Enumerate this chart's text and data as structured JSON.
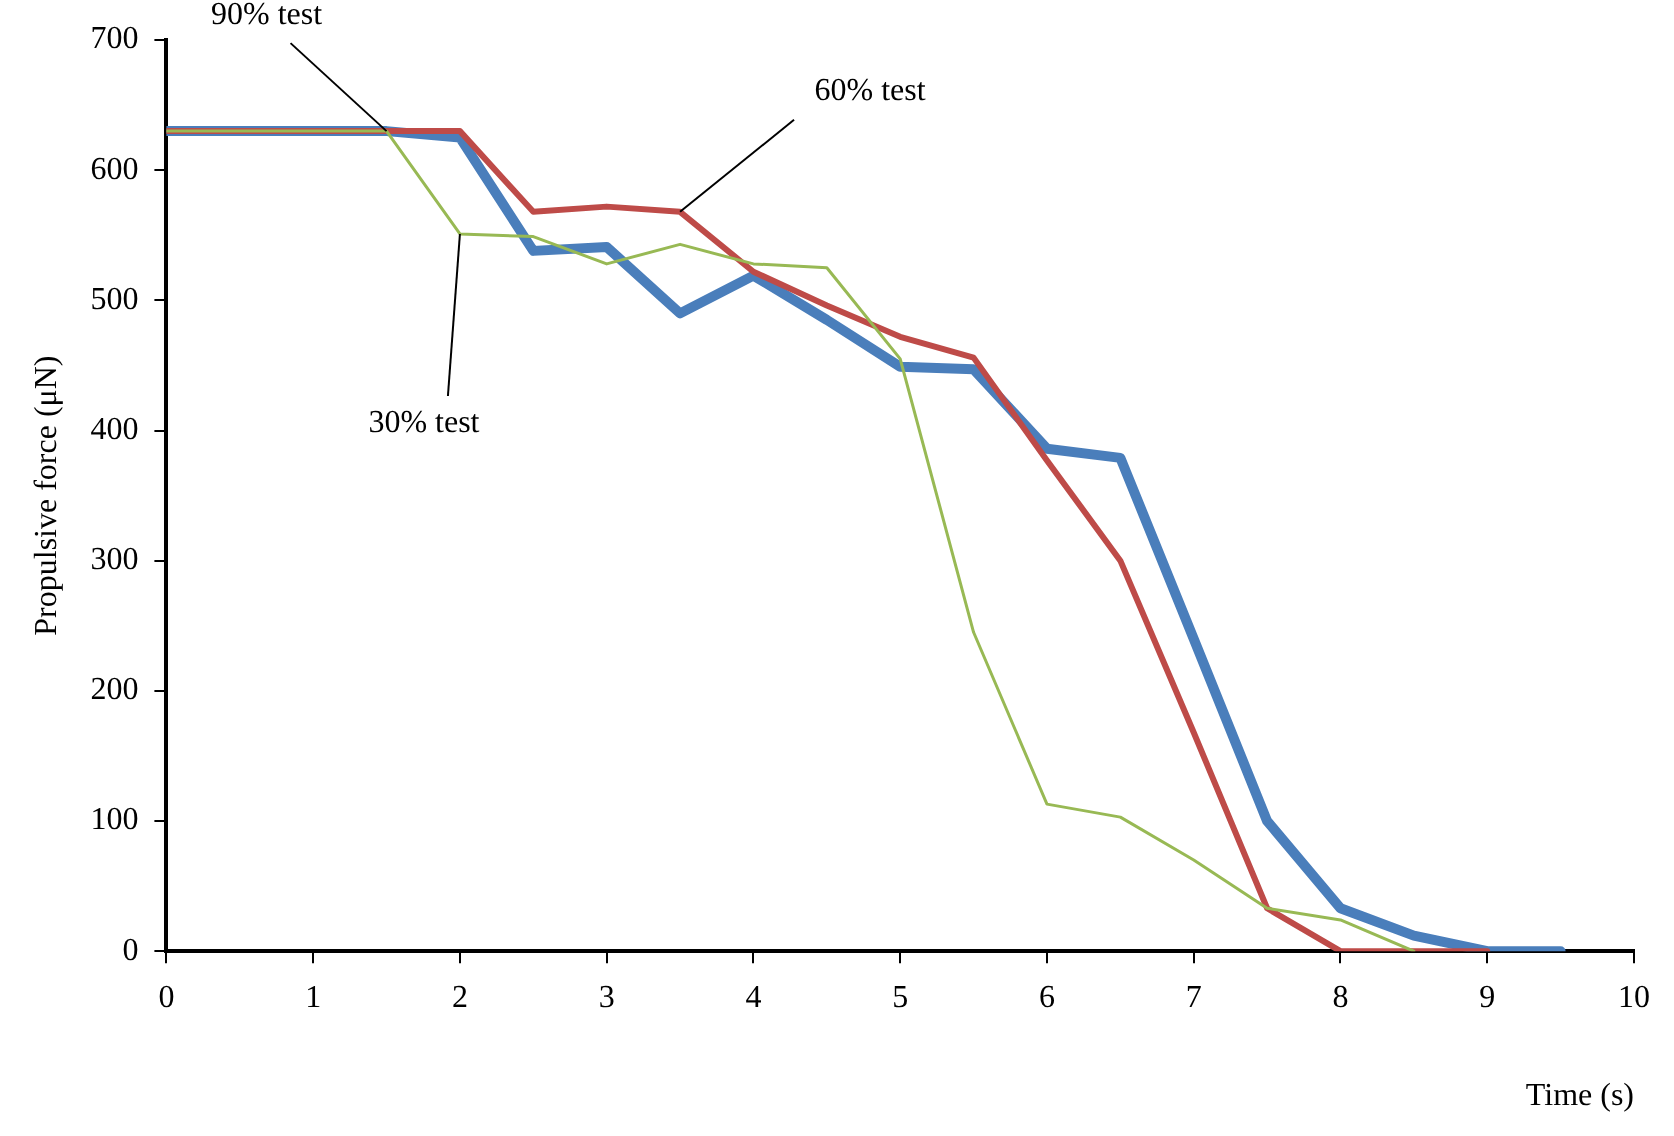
{
  "chart_data": {
    "type": "line",
    "xlabel": "Time (s)",
    "ylabel": "Propulsive force (μN)",
    "x": [
      0,
      0.5,
      1,
      1.5,
      2,
      2.5,
      3,
      3.5,
      4,
      4.5,
      5,
      5.5,
      6,
      6.5,
      7,
      7.5,
      8,
      8.5,
      9,
      9.5
    ],
    "series": [
      {
        "color": "#98b954",
        "values": [
          630,
          630,
          630,
          630,
          551,
          549,
          528,
          543,
          528,
          525,
          455,
          245,
          113,
          103,
          70,
          33,
          24,
          0,
          null,
          null
        ]
      },
      {
        "color": "#be4b48",
        "values": [
          630,
          630,
          630,
          630,
          630,
          568,
          572,
          568,
          522,
          496,
          472,
          456,
          377,
          300,
          168,
          33,
          0,
          0,
          0,
          null
        ]
      },
      {
        "color": "#4a7ebb",
        "values": [
          630,
          630,
          630,
          630,
          625,
          538,
          541,
          490,
          519,
          485,
          449,
          447,
          386,
          379,
          240,
          100,
          33,
          12,
          0,
          0
        ]
      }
    ],
    "xlim": [
      0,
      10
    ],
    "xticks": [
      0,
      1,
      2,
      3,
      4,
      5,
      6,
      7,
      8,
      9,
      10
    ],
    "ylim": [
      0,
      700
    ],
    "yticks": [
      0,
      100,
      200,
      300,
      400,
      500,
      600,
      700
    ],
    "grid": false,
    "legend": false,
    "marker": "none",
    "line_style": "solid",
    "annotations": [
      {
        "text": "30% test",
        "x": 2,
        "y": 551
      },
      {
        "text": "60% test",
        "x": 3.5,
        "y": 568
      },
      {
        "text": "90% test",
        "x": 1.5,
        "y": 630
      }
    ]
  }
}
